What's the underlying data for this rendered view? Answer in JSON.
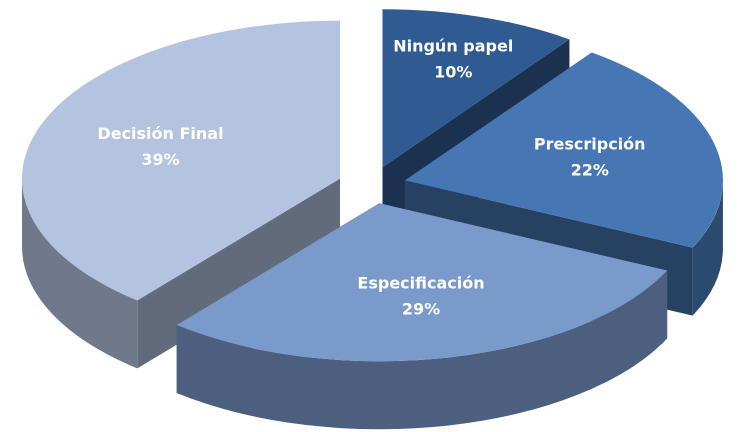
{
  "chart_data": {
    "type": "pie3d",
    "categories": [
      "Ningún papel",
      "Prescripción",
      "Especificación",
      "Decisión Final"
    ],
    "values": [
      10,
      22,
      29,
      39
    ],
    "value_labels": [
      "10%",
      "22%",
      "29%",
      "39%"
    ],
    "colors": [
      "#2f5b92",
      "#4677b4",
      "#7a9acb",
      "#b3c3e0"
    ]
  }
}
